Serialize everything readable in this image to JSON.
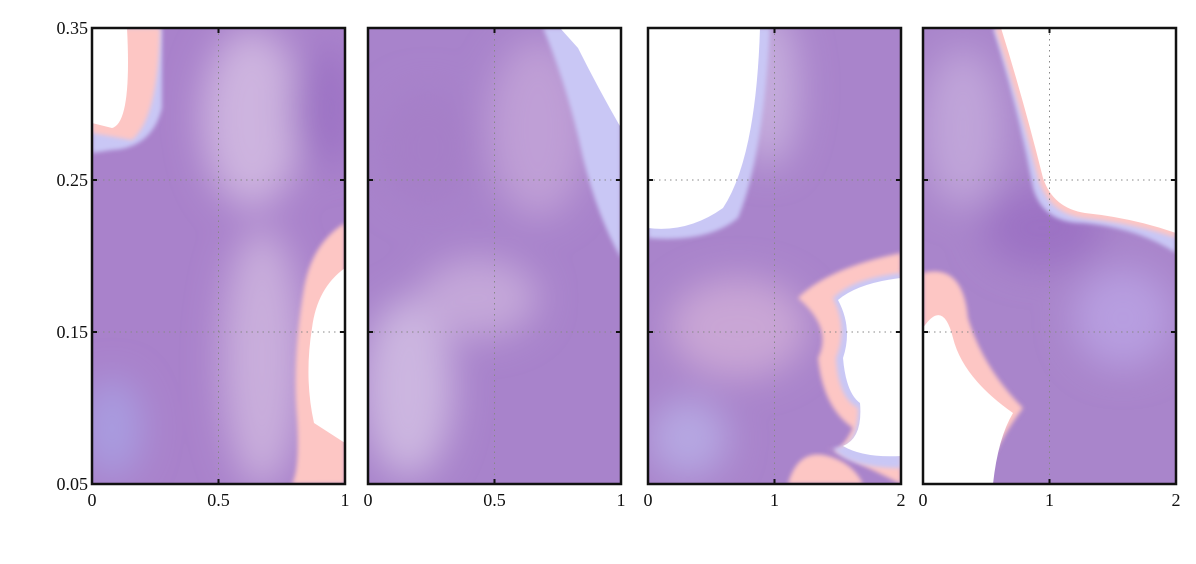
{
  "chart_data": [
    {
      "type": "density",
      "xlim": [
        0,
        1
      ],
      "xticks": [
        0,
        0.5,
        1
      ],
      "ylim": [
        0.05,
        0.35
      ],
      "yticks": [
        0.05,
        0.15,
        0.25,
        0.35
      ],
      "show_ytick_labels": true,
      "grid": true
    },
    {
      "type": "density",
      "xlim": [
        0,
        1
      ],
      "xticks": [
        0,
        0.5,
        1
      ],
      "ylim": [
        0.05,
        0.35
      ],
      "yticks": [
        0.05,
        0.15,
        0.25,
        0.35
      ],
      "show_ytick_labels": false,
      "grid": true
    },
    {
      "type": "density",
      "xlim": [
        0,
        2
      ],
      "xticks": [
        0,
        1,
        2
      ],
      "ylim": [
        0.05,
        0.35
      ],
      "yticks": [
        0.05,
        0.15,
        0.25,
        0.35
      ],
      "show_ytick_labels": false,
      "grid": true
    },
    {
      "type": "density",
      "xlim": [
        0,
        2
      ],
      "xticks": [
        0,
        1,
        2
      ],
      "ylim": [
        0.05,
        0.35
      ],
      "yticks": [
        0.05,
        0.15,
        0.25,
        0.35
      ],
      "show_ytick_labels": false,
      "grid": true
    }
  ]
}
